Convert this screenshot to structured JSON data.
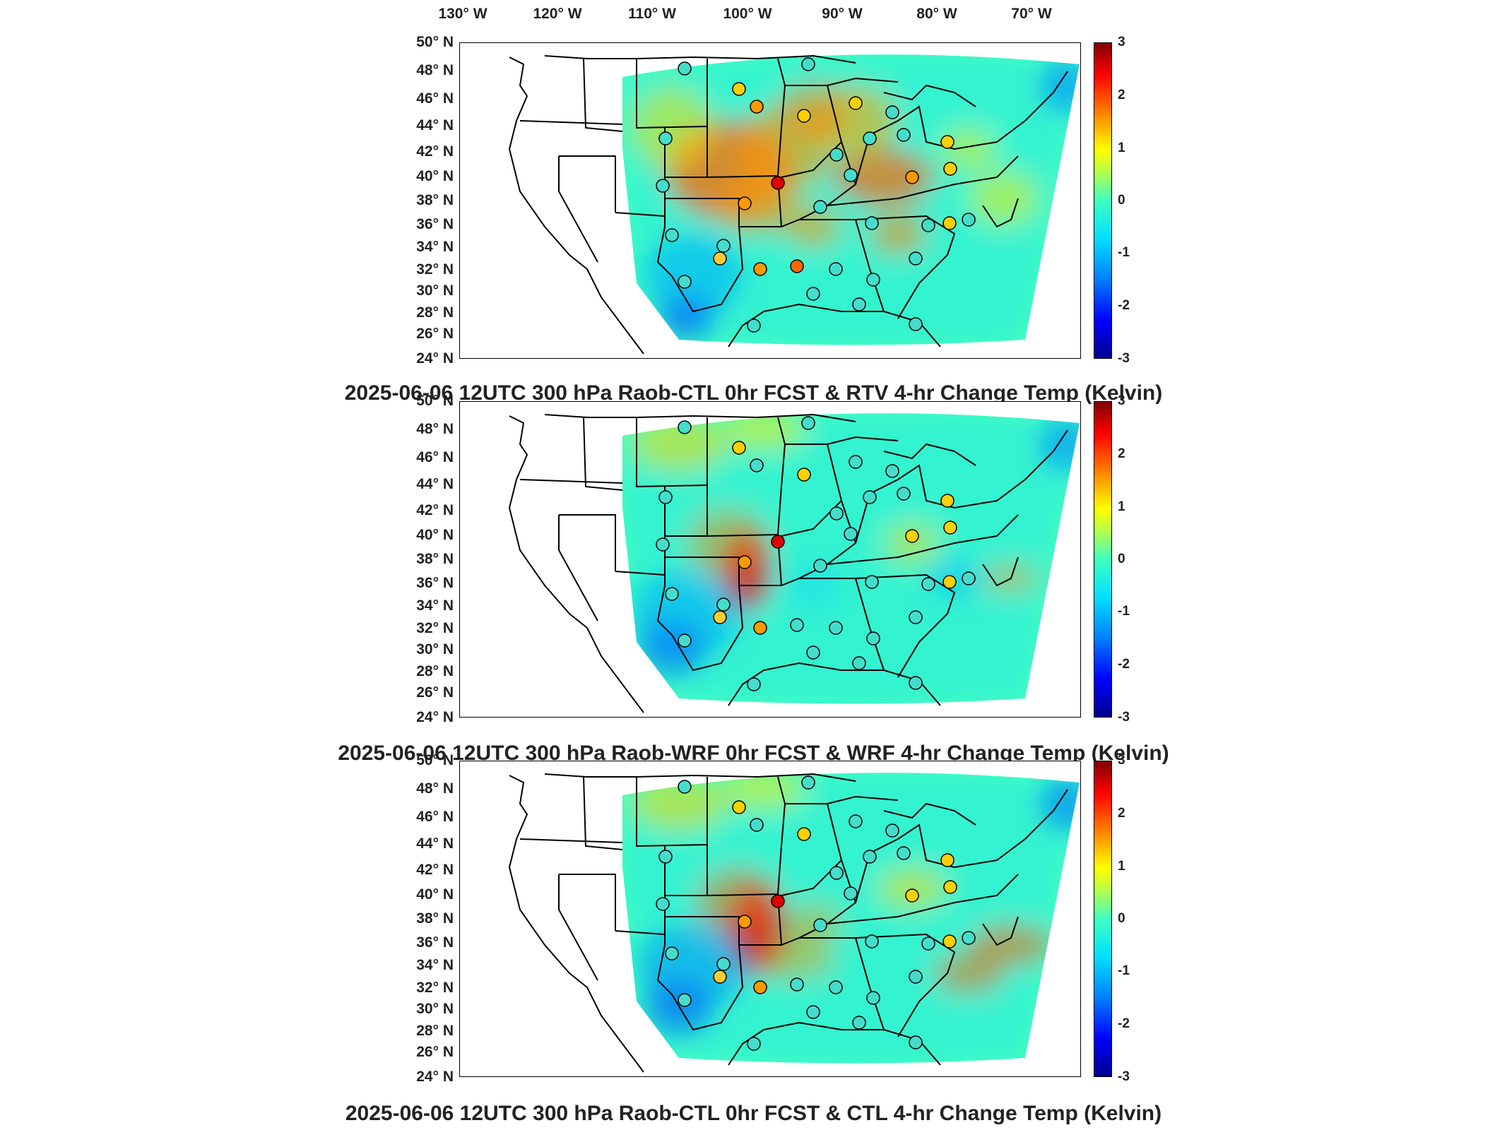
{
  "map": {
    "lon_labels": [
      "130° W",
      "120° W",
      "110° W",
      "100° W",
      "90° W",
      "80° W",
      "70° W"
    ],
    "lat_labels": [
      "50° N",
      "48° N",
      "46° N",
      "44° N",
      "42° N",
      "40° N",
      "38° N",
      "36° N",
      "34° N",
      "32° N",
      "30° N",
      "28° N",
      "26° N",
      "24° N"
    ],
    "colorbar_ticks": [
      "3",
      "2",
      "1",
      "0",
      "-1",
      "-2",
      "-3"
    ],
    "colors": {
      "cold": "#0000ff",
      "neutral": "#40ffc0",
      "warm": "#ff0000"
    }
  },
  "panels": [
    {
      "title": "2025-06-06 12UTC 300 hPa Raob-CTL 0hr FCST & RTV 4-hr Change Temp (Kelvin)",
      "variant": "rtv"
    },
    {
      "title": "2025-06-06 12UTC 300 hPa Raob-WRF 0hr FCST & WRF 4-hr Change Temp (Kelvin)",
      "variant": "wrf"
    },
    {
      "title": "2025-06-06 12UTC 300 hPa Raob-CTL 0hr FCST & CTL 4-hr Change Temp (Kelvin)",
      "variant": "ctl"
    }
  ]
}
